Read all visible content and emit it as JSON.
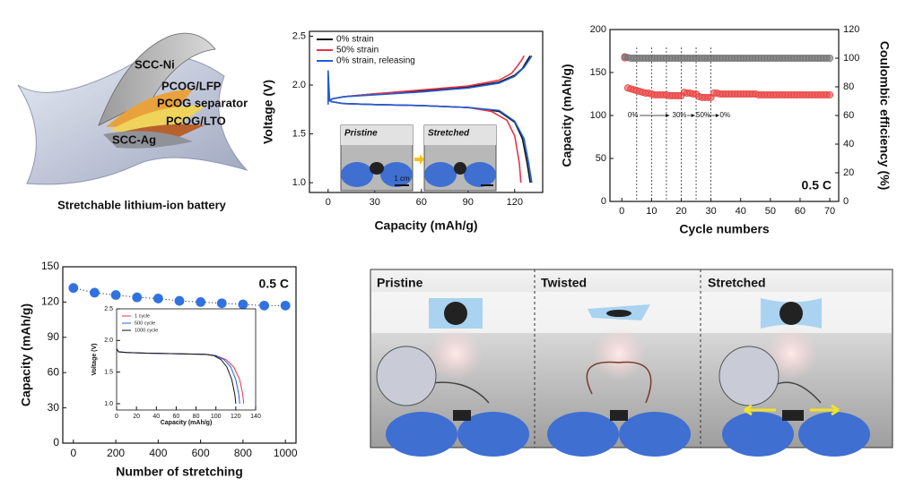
{
  "illustration": {
    "labels": [
      "SCC-Ni",
      "PCOG/LFP",
      "PCOG separator",
      "PCOG/LTO",
      "SCC-Ag"
    ],
    "caption": "Stretchable lithium-ion battery"
  },
  "chart_data": [
    {
      "type": "line",
      "xlabel": "Capacity (mAh/g)",
      "ylabel": "Voltage (V)",
      "xlim": [
        -12,
        138
      ],
      "xticks": [
        0,
        30,
        60,
        90,
        120
      ],
      "ylim": [
        0.9,
        2.55
      ],
      "yticks": [
        {
          "value": 1,
          "label": "1.0"
        },
        {
          "value": 1.5,
          "label": "1.5"
        },
        {
          "value": 2,
          "label": "2.0"
        },
        {
          "value": 2.5,
          "label": "2.5"
        }
      ],
      "legend": "upper left",
      "inset_labels": [
        "Pristine",
        "Stretched",
        "1 cm"
      ],
      "series": [
        {
          "name": "0% strain",
          "color": "#111111",
          "x": [
            0,
            3,
            10,
            30,
            60,
            90,
            110,
            120,
            125,
            128,
            130,
            null,
            0,
            2,
            10,
            30,
            60,
            90,
            110,
            120,
            125,
            128,
            130
          ],
          "values": [
            1.84,
            1.86,
            1.88,
            1.91,
            1.94,
            1.98,
            2.03,
            2.1,
            2.17,
            2.25,
            2.3,
            null,
            1.87,
            1.83,
            1.81,
            1.8,
            1.79,
            1.77,
            1.73,
            1.62,
            1.45,
            1.2,
            1.0
          ]
        },
        {
          "name": "50% strain",
          "color": "#e8334a",
          "x": [
            0,
            3,
            10,
            30,
            60,
            90,
            110,
            118,
            122,
            125,
            126,
            null,
            0,
            2,
            10,
            30,
            60,
            90,
            105,
            115,
            120,
            123,
            124
          ],
          "values": [
            1.84,
            1.86,
            1.88,
            1.91,
            1.95,
            1.99,
            2.05,
            2.12,
            2.2,
            2.27,
            2.3,
            null,
            1.87,
            1.83,
            1.81,
            1.8,
            1.79,
            1.77,
            1.73,
            1.64,
            1.48,
            1.2,
            1.0
          ]
        },
        {
          "name": "0% strain, releasing",
          "color": "#1f5fd6",
          "x": [
            0,
            0,
            1,
            3,
            10,
            30,
            60,
            90,
            110,
            120,
            126,
            129,
            131,
            null,
            0,
            2,
            10,
            30,
            60,
            90,
            110,
            120,
            126,
            129,
            131
          ],
          "values": [
            1.8,
            2.15,
            1.84,
            1.86,
            1.88,
            1.9,
            1.93,
            1.97,
            2.02,
            2.09,
            2.18,
            2.25,
            2.3,
            null,
            1.86,
            1.83,
            1.81,
            1.8,
            1.79,
            1.77,
            1.74,
            1.63,
            1.45,
            1.2,
            1.0
          ]
        }
      ]
    },
    {
      "type": "scatter",
      "xlabel": "Cycle numbers",
      "ylabel": "Capacity (mAh/g)",
      "y2label": "Coulombic efficiency (%)",
      "xlim": [
        -4,
        73
      ],
      "xticks": [
        0,
        10,
        20,
        30,
        40,
        50,
        60,
        70
      ],
      "ylim": [
        0,
        200
      ],
      "yticks": [
        0,
        50,
        100,
        150,
        200
      ],
      "y2lim": [
        0,
        120
      ],
      "y2ticks": [
        0,
        20,
        40,
        60,
        80,
        100,
        120
      ],
      "annotation": "0.5 C",
      "strain_lines": [
        5,
        10,
        15,
        20,
        25,
        30
      ],
      "strain_labels": [
        "0%",
        "30%",
        "50%",
        "0%"
      ],
      "x": [
        1,
        2,
        3,
        4,
        5,
        6,
        7,
        8,
        9,
        10,
        11,
        12,
        13,
        14,
        15,
        16,
        17,
        18,
        19,
        20,
        21,
        22,
        23,
        24,
        25,
        26,
        27,
        28,
        29,
        30,
        31,
        32,
        33,
        34,
        35,
        36,
        37,
        38,
        39,
        40,
        41,
        42,
        43,
        44,
        45,
        46,
        47,
        48,
        49,
        50,
        51,
        52,
        53,
        54,
        55,
        56,
        57,
        58,
        59,
        60,
        61,
        62,
        63,
        64,
        65,
        66,
        67,
        68,
        69,
        70
      ],
      "series": [
        {
          "name": "Capacity",
          "color": "#e8413f",
          "values": [
            167,
            132,
            131,
            130,
            129,
            128,
            127,
            126,
            126,
            125,
            124,
            124,
            124,
            124,
            124,
            123,
            123,
            123,
            123,
            123,
            127,
            126,
            126,
            125,
            125,
            122,
            121,
            121,
            121,
            121,
            126,
            126,
            125,
            125,
            125,
            125,
            125,
            125,
            125,
            125,
            125,
            125,
            125,
            125,
            125,
            124,
            124,
            124,
            124,
            124,
            124,
            124,
            124,
            124,
            124,
            124,
            124,
            124,
            124,
            124,
            124,
            124,
            124,
            124,
            124,
            124,
            124,
            124,
            124,
            124
          ]
        },
        {
          "name": "Coulombic efficiency",
          "color": "#707070",
          "axis": "y2",
          "values": [
            101,
            100.5,
            100,
            100,
            100,
            100,
            100,
            100,
            100,
            100,
            100,
            100,
            100,
            100,
            100,
            100,
            100,
            100,
            100,
            100,
            100,
            100,
            100,
            100,
            100,
            100,
            100,
            100,
            100,
            100,
            100,
            100,
            100,
            100,
            100,
            100,
            100,
            100,
            100,
            100,
            100,
            100,
            100,
            100,
            100,
            100,
            100,
            100,
            100,
            100,
            100,
            100,
            100,
            100,
            100,
            100,
            100,
            100,
            100,
            100,
            100,
            100,
            100,
            100,
            100,
            100,
            100,
            100,
            100,
            100
          ]
        }
      ]
    },
    {
      "type": "line",
      "markers": true,
      "line_dash": "dotted",
      "xlabel": "Number of stretching",
      "ylabel": "Capacity (mAh/g)",
      "xlim": [
        -50,
        1050
      ],
      "xticks": [
        0,
        200,
        400,
        600,
        800,
        1000
      ],
      "ylim": [
        0,
        150
      ],
      "yticks": [
        0,
        30,
        60,
        90,
        120,
        150
      ],
      "annotation": "0.5 C",
      "x": [
        0,
        100,
        200,
        300,
        400,
        500,
        600,
        700,
        800,
        900,
        1000
      ],
      "series": [
        {
          "name": "Capacity",
          "color": "#2f72e0",
          "values": [
            132,
            128,
            126,
            124,
            123,
            121,
            120,
            119,
            118,
            117,
            117
          ]
        }
      ]
    },
    {
      "type": "line",
      "xlabel": "Capacity (mAh/g)",
      "ylabel": "Voltage (V)",
      "xlim": [
        0,
        140
      ],
      "xticks": [
        0,
        20,
        40,
        60,
        80,
        100,
        120,
        140
      ],
      "ylim": [
        0.9,
        2.5
      ],
      "yticks": [
        {
          "value": 1,
          "label": "1.0"
        },
        {
          "value": 1.5,
          "label": "1.5"
        },
        {
          "value": 2,
          "label": "2.0"
        },
        {
          "value": 2.5,
          "label": "2.5"
        }
      ],
      "legend": "upper left",
      "series": [
        {
          "name": "1 cycle",
          "color": "#e8334a",
          "x": [
            0,
            2,
            10,
            30,
            60,
            90,
            100,
            110,
            118,
            124,
            127,
            128
          ],
          "values": [
            1.87,
            1.82,
            1.81,
            1.8,
            1.79,
            1.78,
            1.76,
            1.7,
            1.58,
            1.38,
            1.15,
            1.0
          ]
        },
        {
          "name": "500 cycle",
          "color": "#1f5fd6",
          "x": [
            0,
            2,
            10,
            30,
            60,
            90,
            100,
            108,
            115,
            120,
            123,
            124
          ],
          "values": [
            1.87,
            1.82,
            1.81,
            1.8,
            1.79,
            1.78,
            1.76,
            1.7,
            1.58,
            1.38,
            1.15,
            1.0
          ]
        },
        {
          "name": "1000 cycle",
          "color": "#111111",
          "x": [
            0,
            2,
            10,
            30,
            60,
            90,
            98,
            105,
            111,
            116,
            119,
            120
          ],
          "values": [
            1.87,
            1.82,
            1.81,
            1.8,
            1.79,
            1.78,
            1.76,
            1.7,
            1.58,
            1.38,
            1.15,
            1.0
          ]
        }
      ]
    }
  ],
  "photos": {
    "labels": [
      "Pristine",
      "Twisted",
      "Stretched"
    ]
  }
}
